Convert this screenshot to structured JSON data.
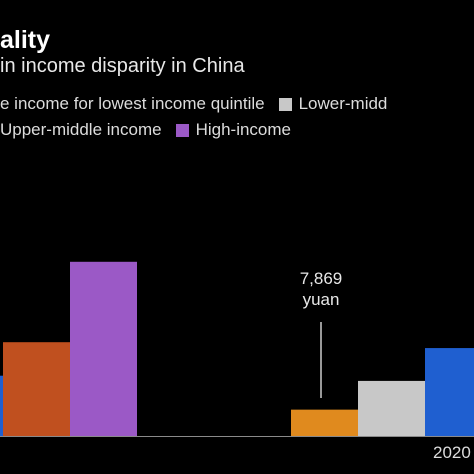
{
  "chart_data": {
    "type": "bar",
    "title": "ality",
    "subtitle": "in income disparity in China",
    "categories": [
      "",
      "2020"
    ],
    "series": [
      {
        "name": "e income for lowest income quintile",
        "color": "#e08a1e",
        "values": [
          null,
          7869
        ]
      },
      {
        "name": "Lower-midd",
        "color": "#c8c8c8",
        "values": [
          null,
          16443
        ]
      },
      {
        "name": "",
        "color": "#1f5fd0",
        "values": [
          18000,
          26249
        ]
      },
      {
        "name": "Upper-middle income",
        "color": "#c0501f",
        "values": [
          28000,
          null
        ]
      },
      {
        "name": "High-income",
        "color": "#9b59c6",
        "values": [
          52000,
          null
        ]
      }
    ],
    "annotation": {
      "value_label": "7,869",
      "unit_label": "yuan"
    },
    "ylim": [
      0,
      60000
    ],
    "grid": false,
    "legend_position": "top"
  }
}
